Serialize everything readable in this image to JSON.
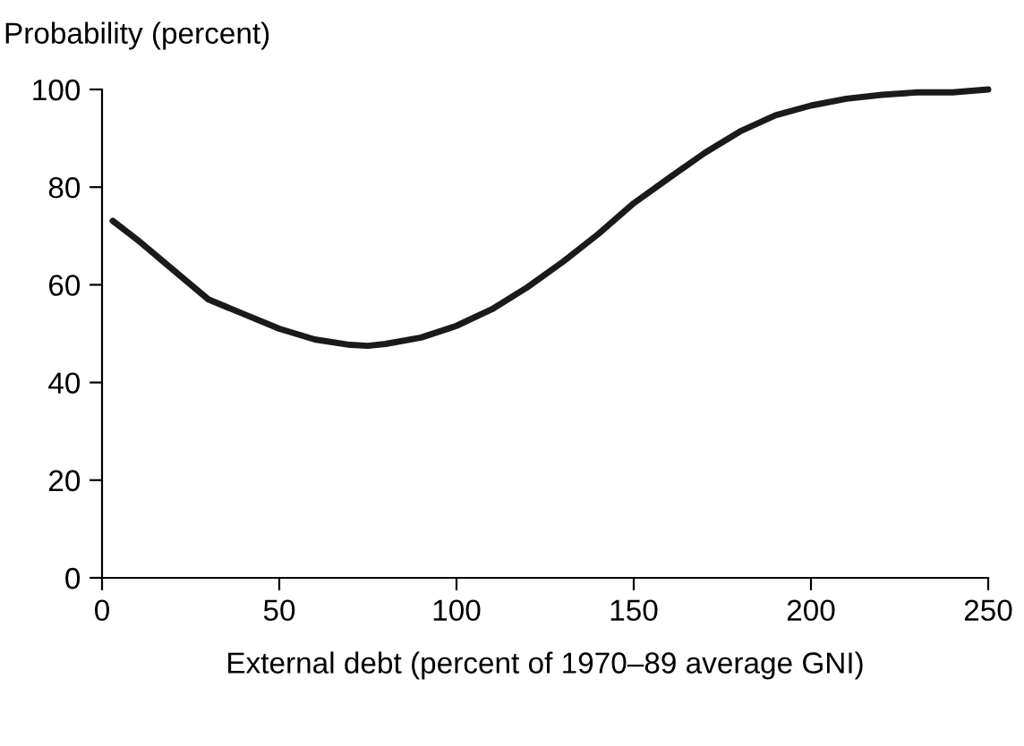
{
  "chart_data": {
    "type": "line",
    "ylabel": "Probability (percent)",
    "xlabel": "External debt (percent of 1970–89 average GNI)",
    "x": [
      3,
      10,
      20,
      30,
      40,
      50,
      60,
      70,
      75,
      80,
      90,
      100,
      110,
      120,
      130,
      140,
      150,
      160,
      170,
      180,
      190,
      200,
      210,
      220,
      230,
      240,
      250
    ],
    "series": [
      {
        "color": "#1a1a1a",
        "values": [
          73.1,
          69.2,
          63.1,
          57.0,
          54.0,
          51.0,
          48.8,
          47.7,
          47.5,
          47.9,
          49.2,
          51.6,
          55.0,
          59.5,
          64.7,
          70.4,
          76.7,
          81.9,
          87.0,
          91.4,
          94.7,
          96.7,
          98.1,
          98.9,
          99.4,
          99.4,
          100.0
        ]
      }
    ],
    "xlim": [
      0,
      250
    ],
    "ylim": [
      0,
      100
    ],
    "xticks": [
      0,
      50,
      100,
      150,
      200,
      250
    ],
    "yticks": [
      0,
      20,
      40,
      60,
      80,
      100
    ],
    "grid": false,
    "legend": false,
    "marker": "none",
    "line_style": "solid"
  }
}
